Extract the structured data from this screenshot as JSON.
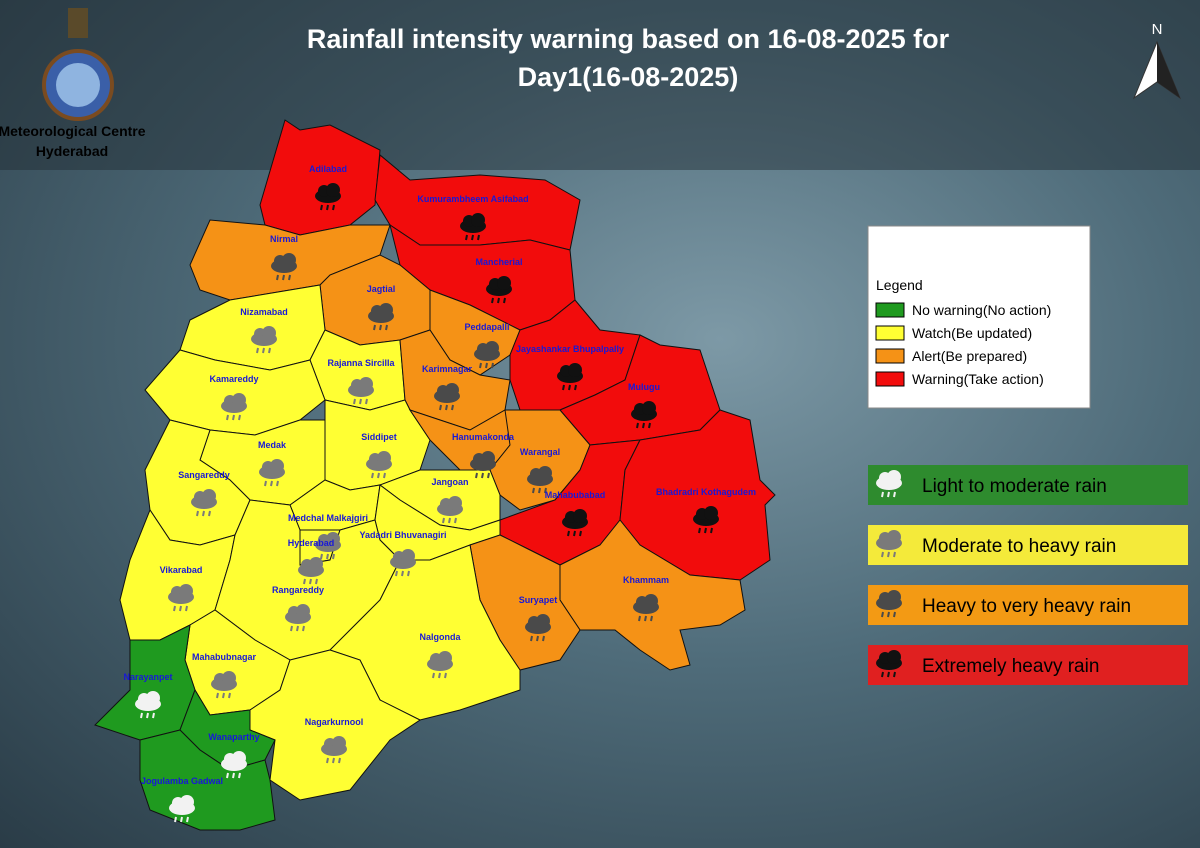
{
  "header": {
    "title_line1": "Rainfall intensity warning based on 16-08-2025 for",
    "title_line2": "Day1(16-08-2025)",
    "org_line1": "Meteorological Centre",
    "org_line2": "Hyderabad",
    "north": "N"
  },
  "legend": {
    "title": "Legend",
    "items": [
      {
        "label": "No warning(No action)",
        "color": "#1f9a1f"
      },
      {
        "label": "Watch(Be updated)",
        "color": "#ffff33"
      },
      {
        "label": "Alert(Be prepared)",
        "color": "#f59216"
      },
      {
        "label": "Warning(Take action)",
        "color": "#f20c0c"
      }
    ]
  },
  "intensity": [
    {
      "label": "Light to moderate rain",
      "color": "#2e8b2e"
    },
    {
      "label": "Moderate to heavy rain",
      "color": "#f4ea3a"
    },
    {
      "label": "Heavy to very heavy rain",
      "color": "#f39a14"
    },
    {
      "label": "Extremely heavy rain",
      "color": "#e02020"
    }
  ],
  "districts": [
    {
      "name": "Adilabad",
      "color": "#f20c0c"
    },
    {
      "name": "Kumurambheem Asifabad",
      "color": "#f20c0c"
    },
    {
      "name": "Nirmal",
      "color": "#f59216"
    },
    {
      "name": "Mancherial",
      "color": "#f20c0c"
    },
    {
      "name": "Jagtial",
      "color": "#f59216"
    },
    {
      "name": "Nizamabad",
      "color": "#ffff33"
    },
    {
      "name": "Peddapalli",
      "color": "#f59216"
    },
    {
      "name": "Jayashankar Bhupalpally",
      "color": "#f20c0c"
    },
    {
      "name": "Rajanna Sircilla",
      "color": "#ffff33"
    },
    {
      "name": "Karimnagar",
      "color": "#f59216"
    },
    {
      "name": "Mulugu",
      "color": "#f20c0c"
    },
    {
      "name": "Kamareddy",
      "color": "#ffff33"
    },
    {
      "name": "Medak",
      "color": "#ffff33"
    },
    {
      "name": "Siddipet",
      "color": "#ffff33"
    },
    {
      "name": "Hanumakonda",
      "color": "#f59216"
    },
    {
      "name": "Warangal",
      "color": "#f59216"
    },
    {
      "name": "Sangareddy",
      "color": "#ffff33"
    },
    {
      "name": "Jangoan",
      "color": "#ffff33"
    },
    {
      "name": "Mahabubabad",
      "color": "#f20c0c"
    },
    {
      "name": "Bhadradri Kothagudem",
      "color": "#f20c0c"
    },
    {
      "name": "Medchal Malkajgiri",
      "color": "#ffff33"
    },
    {
      "name": "Yadadri Bhuvanagiri",
      "color": "#ffff33"
    },
    {
      "name": "Hyderabad",
      "color": "#ffff33"
    },
    {
      "name": "Vikarabad",
      "color": "#ffff33"
    },
    {
      "name": "Rangareddy",
      "color": "#ffff33"
    },
    {
      "name": "Khammam",
      "color": "#f59216"
    },
    {
      "name": "Suryapet",
      "color": "#f59216"
    },
    {
      "name": "Nalgonda",
      "color": "#ffff33"
    },
    {
      "name": "Mahabubnagar",
      "color": "#ffff33"
    },
    {
      "name": "Narayanpet",
      "color": "#1f9a1f"
    },
    {
      "name": "Nagarkurnool",
      "color": "#ffff33"
    },
    {
      "name": "Wanaparthy",
      "color": "#1f9a1f"
    },
    {
      "name": "Jogulamba Gadwal",
      "color": "#1f9a1f"
    }
  ]
}
